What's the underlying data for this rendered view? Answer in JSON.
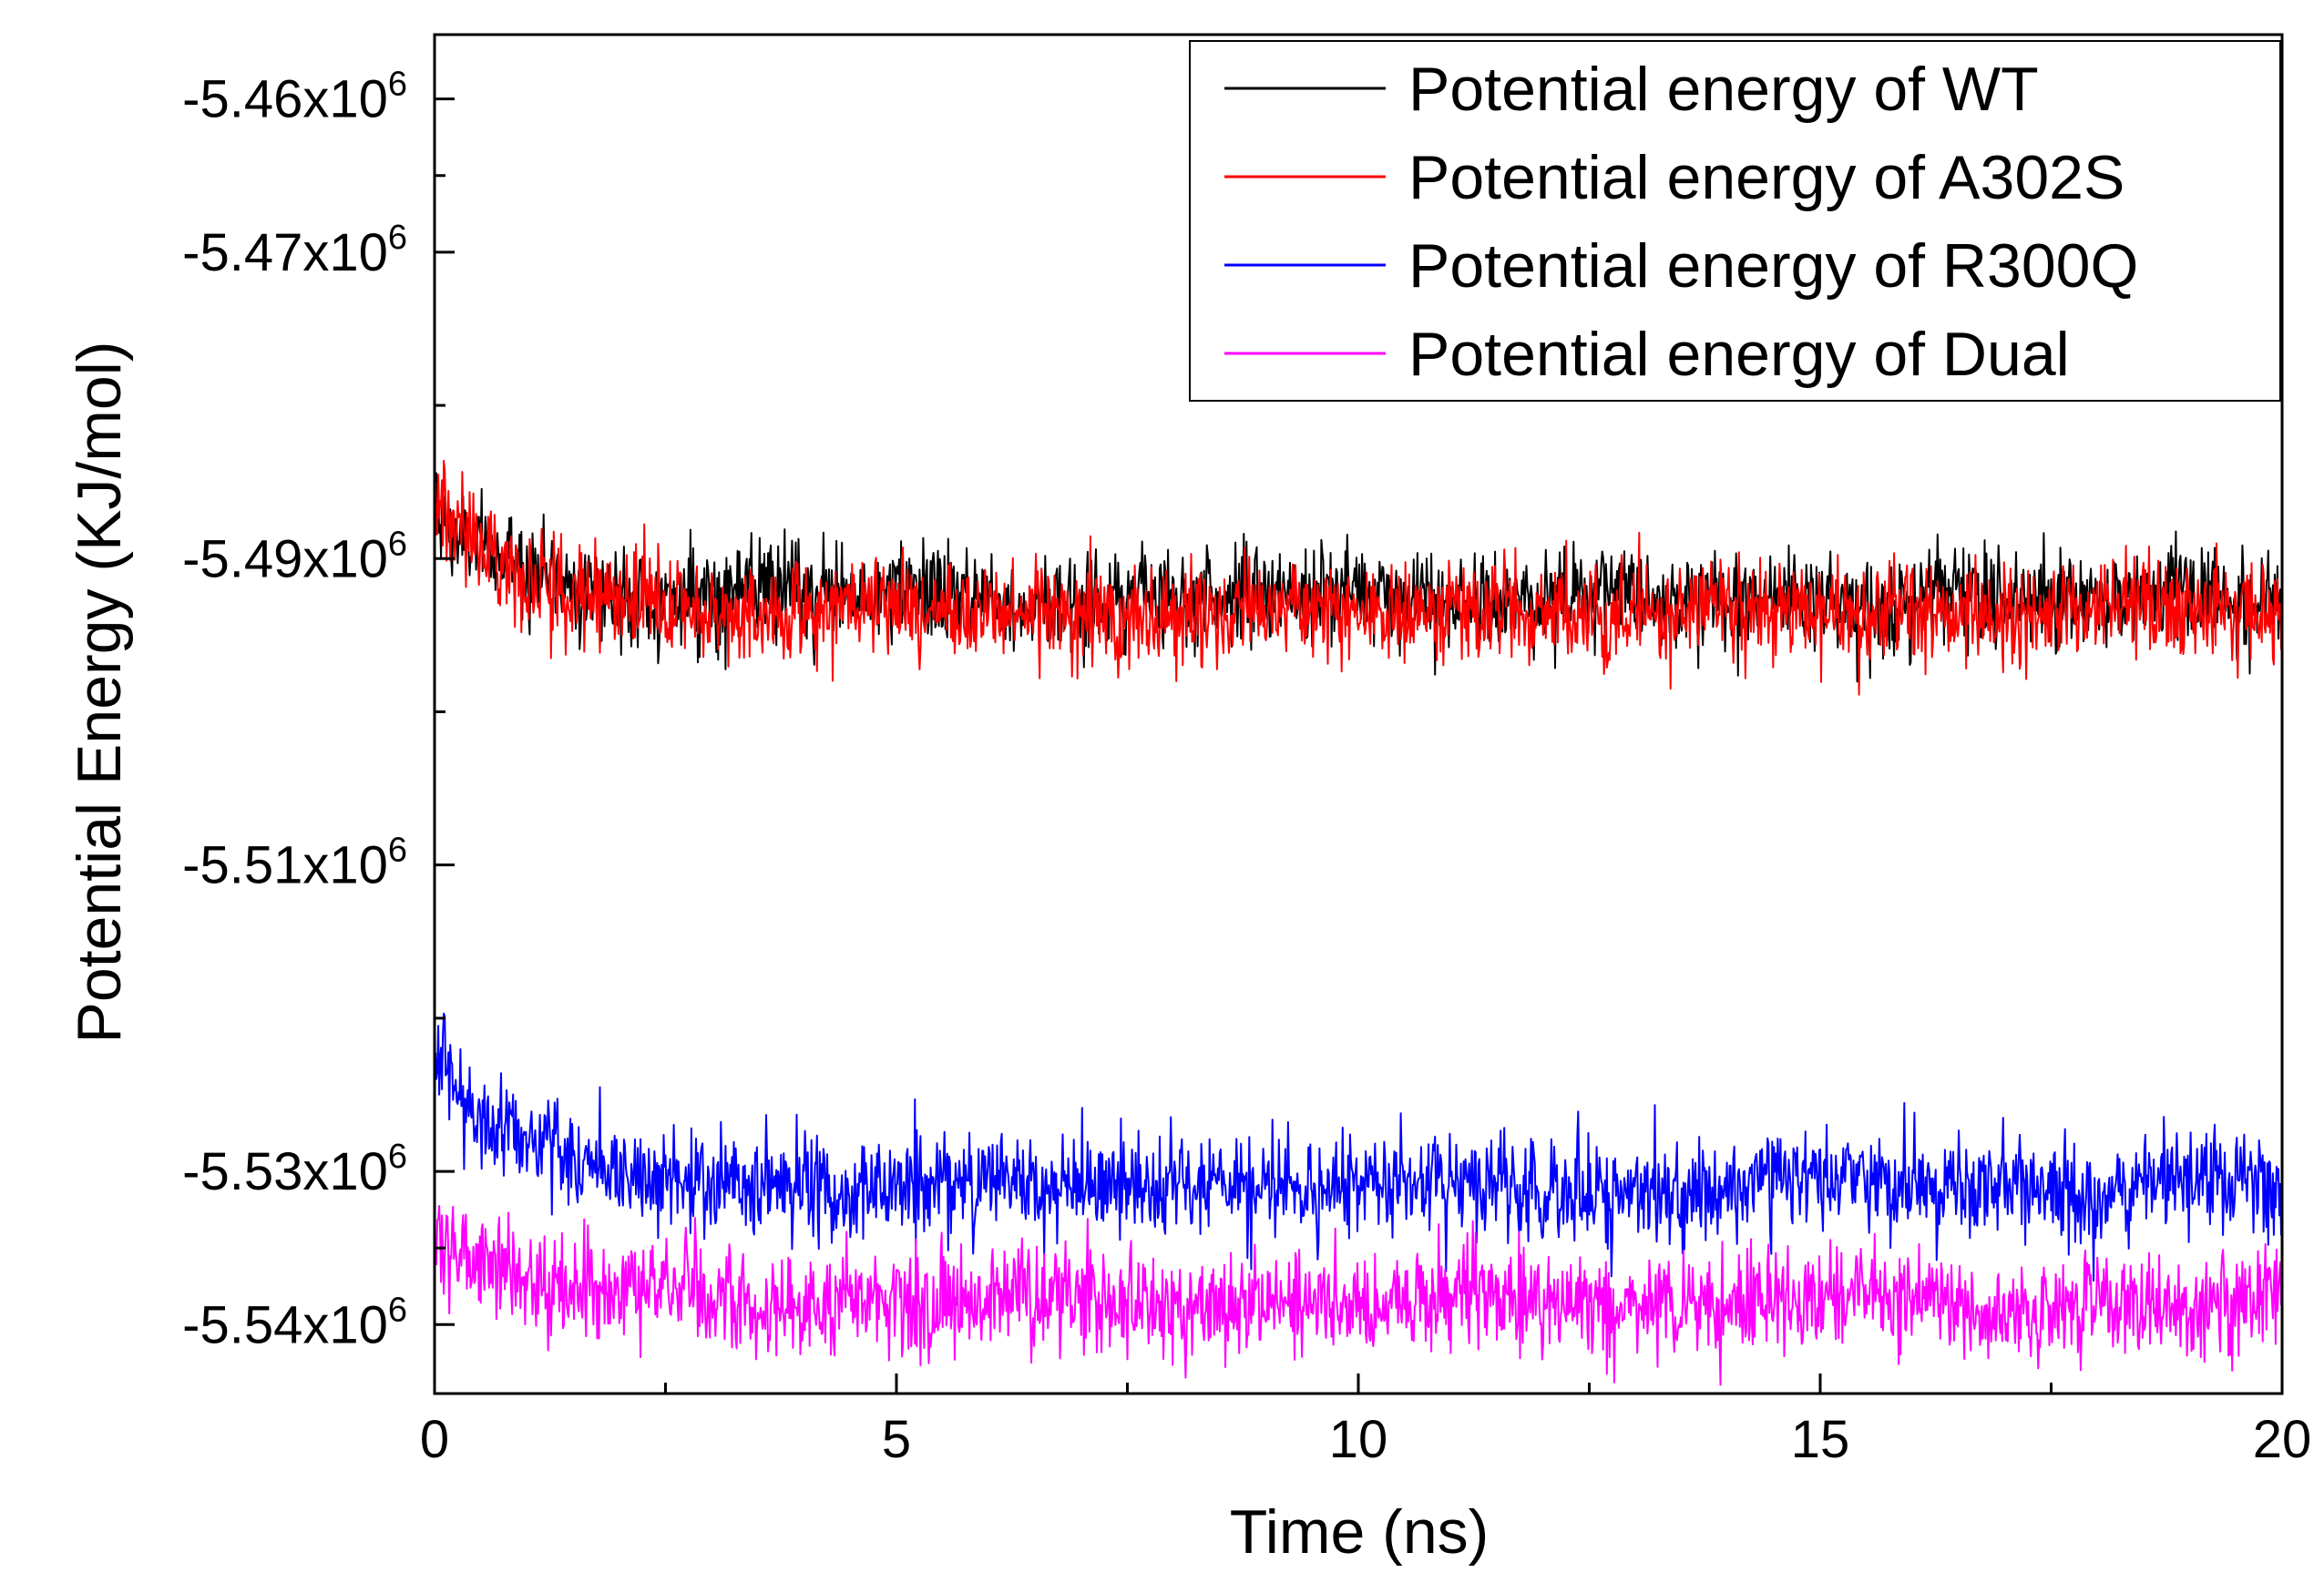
{
  "chart_data": {
    "type": "line",
    "title": "",
    "xlabel": "Time (ns)",
    "ylabel": "Potential Energy (KJ/mol)",
    "xlim": [
      0,
      20
    ],
    "ylim": [
      -5544500.0,
      -5455800.0
    ],
    "x_ticks": [
      0,
      5,
      10,
      15,
      20
    ],
    "x_tick_labels": [
      "0",
      "5",
      "10",
      "15",
      "20"
    ],
    "y_ticks": [
      -5460000.0,
      -5470000.0,
      -5490000.0,
      -5510000.0,
      -5530000.0,
      -5540000.0
    ],
    "y_tick_labels": [
      {
        "mantissa": "-5.46x10",
        "exponent": "6"
      },
      {
        "mantissa": "-5.47x10",
        "exponent": "6"
      },
      {
        "mantissa": "-5.49x10",
        "exponent": "6"
      },
      {
        "mantissa": "-5.51x10",
        "exponent": "6"
      },
      {
        "mantissa": "-5.53x10",
        "exponent": "6"
      },
      {
        "mantissa": "-5.54x10",
        "exponent": "6"
      }
    ],
    "legend_position": "top-right",
    "grid": false,
    "series": [
      {
        "name": "Potential energy of WT",
        "color": "#000000",
        "start": -5487300.0,
        "mean": -5492500.0,
        "noise": 1600,
        "samples": 2000
      },
      {
        "name": "Potential energy of A302S",
        "color": "#ff0000",
        "start": -5486500.0,
        "mean": -5493500.0,
        "noise": 1600,
        "samples": 2000
      },
      {
        "name": "Potential energy of R300Q",
        "color": "#0000ff",
        "start": -5522500.0,
        "mean": -5531000.0,
        "noise": 1700,
        "samples": 2000
      },
      {
        "name": "Potential energy of Dual",
        "color": "#ff00ff",
        "start": -5534000.0,
        "mean": -5538500.0,
        "noise": 1700,
        "samples": 2000
      }
    ]
  }
}
